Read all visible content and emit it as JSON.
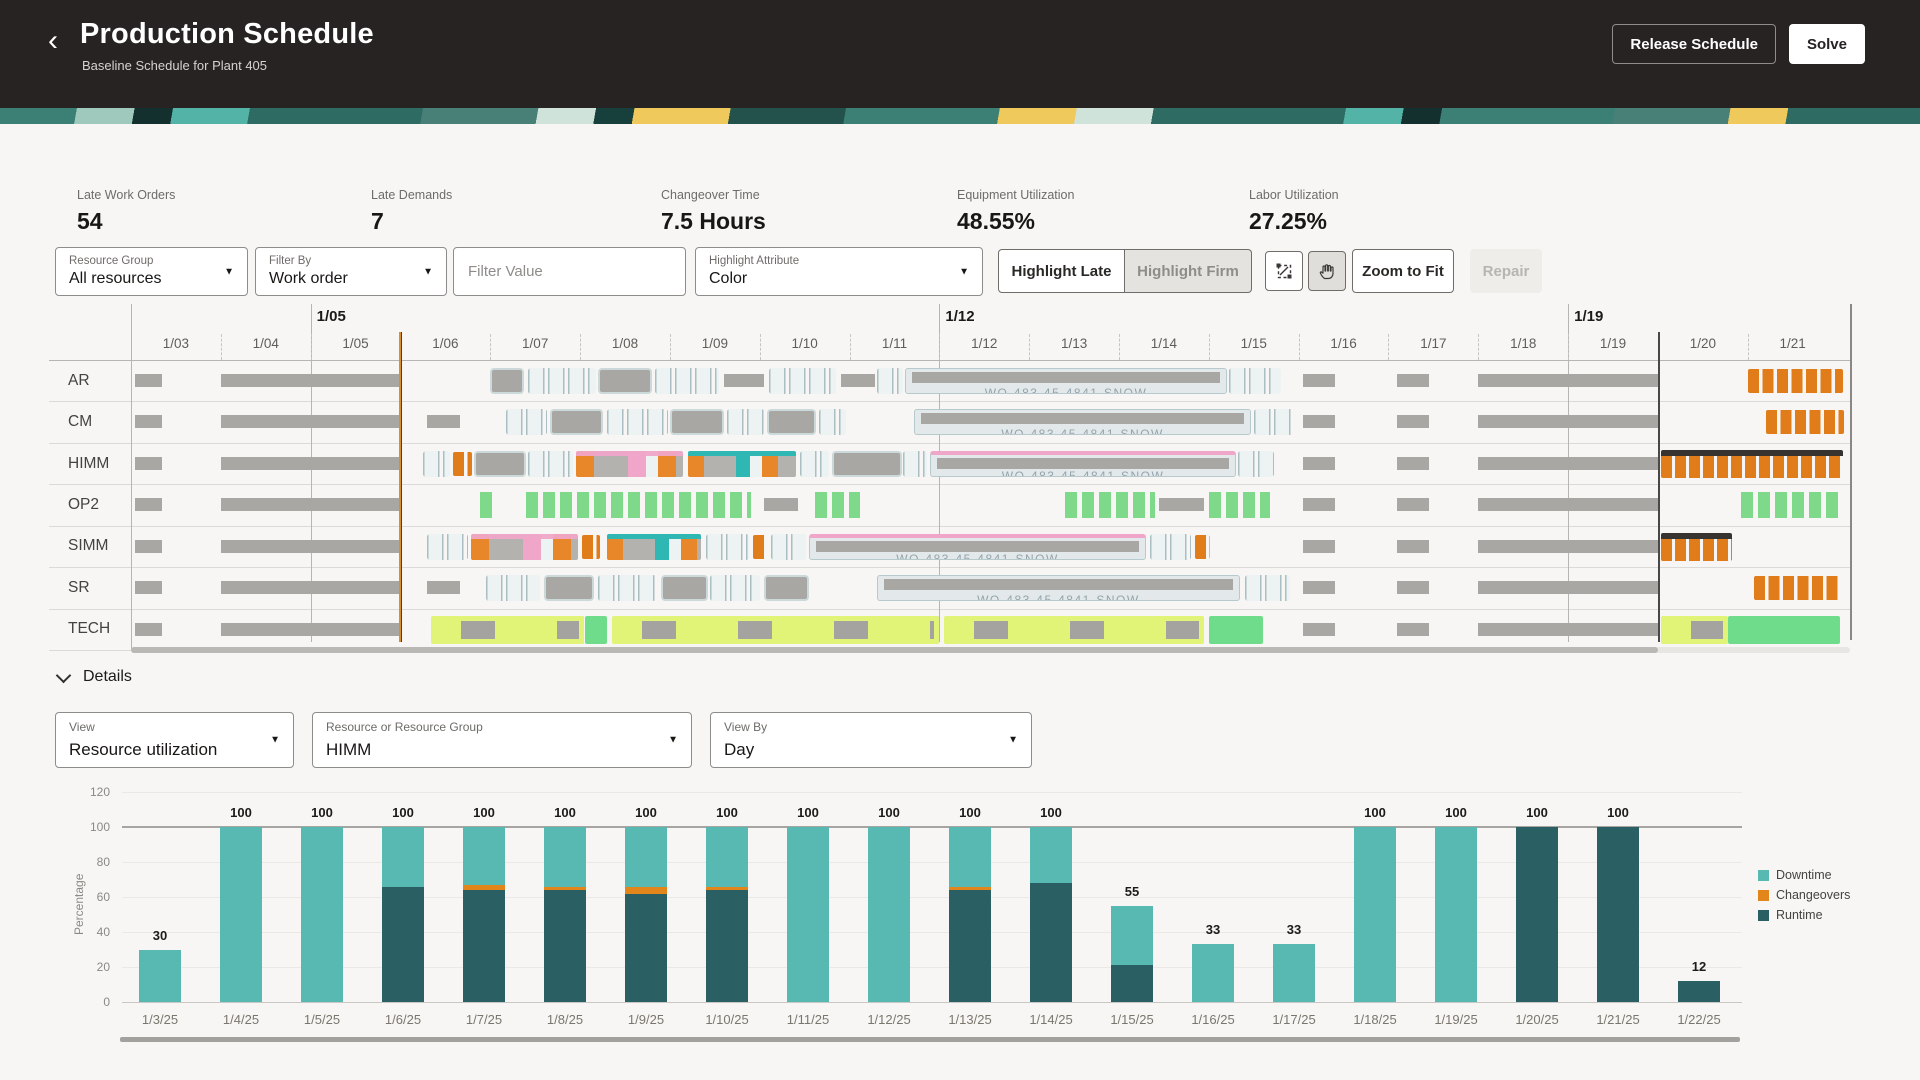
{
  "header": {
    "back_icon": "‹",
    "title": "Production Schedule",
    "subtitle": "Baseline Schedule for Plant 405",
    "release_button": "Release Schedule",
    "solve_button": "Solve"
  },
  "kpis": [
    {
      "label": "Late Work Orders",
      "value": "54"
    },
    {
      "label": "Late Demands",
      "value": "7"
    },
    {
      "label": "Changeover Time",
      "value": "7.5 Hours"
    },
    {
      "label": "Equipment Utilization",
      "value": "48.55%"
    },
    {
      "label": "Labor Utilization",
      "value": "27.25%"
    }
  ],
  "toolbar": {
    "resource_group": {
      "label": "Resource Group",
      "value": "All resources"
    },
    "filter_by": {
      "label": "Filter By",
      "value": "Work order"
    },
    "filter_value": {
      "placeholder": "Filter Value"
    },
    "highlight_attribute": {
      "label": "Highlight Attribute",
      "value": "Color"
    },
    "highlight_late": "Highlight Late",
    "highlight_firm": "Highlight Firm",
    "zoom_to_fit": "Zoom to Fit",
    "repair": "Repair",
    "icons": [
      "marquee-zoom-icon",
      "pan-hand-icon"
    ]
  },
  "gantt": {
    "week_labels": [
      {
        "text": "1/05",
        "day": 2
      },
      {
        "text": "1/12",
        "day": 9
      },
      {
        "text": "1/19",
        "day": 16
      }
    ],
    "day_labels": [
      "1/03",
      "1/04",
      "1/05",
      "1/06",
      "1/07",
      "1/08",
      "1/09",
      "1/10",
      "1/11",
      "1/12",
      "1/13",
      "1/14",
      "1/15",
      "1/16",
      "1/17",
      "1/18",
      "1/19",
      "1/20",
      "1/21"
    ],
    "current_time_day": 3.0,
    "horizon_day": 17.0,
    "illegible_bar_text": "WO-483-45-4841-SNOW",
    "bar_type_names": {
      "g": "downtime-gray",
      "caps": "task-segments",
      "gcap": "firm-task",
      "or": "changeover-orange",
      "orD": "late-orange-dark",
      "gn": "green-tasks",
      "grn": "green-block",
      "lime": "lime-tasks",
      "pko": "pink-orange-mix",
      "tlo": "teal-orange-mix",
      "wo": "work-order-long",
      "pkwo": "work-order-long-pink"
    },
    "rows": [
      {
        "name": "AR",
        "bars": [
          [
            0.05,
            0.3,
            "g"
          ],
          [
            1.0,
            2.0,
            "g"
          ],
          [
            4.0,
            0.38,
            "gcap"
          ],
          [
            4.42,
            0.76,
            "caps"
          ],
          [
            5.2,
            0.6,
            "gcap"
          ],
          [
            5.83,
            0.72,
            "caps"
          ],
          [
            6.6,
            0.45,
            "g"
          ],
          [
            7.1,
            0.75,
            "caps"
          ],
          [
            7.9,
            0.38,
            "g"
          ],
          [
            8.3,
            0.3,
            "caps"
          ],
          [
            8.62,
            3.58,
            "wo"
          ],
          [
            12.22,
            0.58,
            "caps"
          ],
          [
            13.05,
            0.35,
            "g"
          ],
          [
            14.1,
            0.35,
            "g"
          ],
          [
            15.0,
            2.0,
            "g"
          ],
          [
            18.0,
            1.06,
            "or"
          ]
        ]
      },
      {
        "name": "CM",
        "bars": [
          [
            0.05,
            0.3,
            "g"
          ],
          [
            1.0,
            2.0,
            "g"
          ],
          [
            3.3,
            0.36,
            "g"
          ],
          [
            4.18,
            0.45,
            "caps"
          ],
          [
            4.66,
            0.6,
            "gcap"
          ],
          [
            5.3,
            0.68,
            "caps"
          ],
          [
            6.0,
            0.6,
            "gcap"
          ],
          [
            6.63,
            0.42,
            "caps"
          ],
          [
            7.08,
            0.55,
            "gcap"
          ],
          [
            7.66,
            0.3,
            "caps"
          ],
          [
            8.72,
            3.75,
            "wo"
          ],
          [
            12.5,
            0.45,
            "caps"
          ],
          [
            13.05,
            0.35,
            "g"
          ],
          [
            14.1,
            0.35,
            "g"
          ],
          [
            15.0,
            2.0,
            "g"
          ],
          [
            18.2,
            0.87,
            "or"
          ]
        ]
      },
      {
        "name": "HIMM",
        "bars": [
          [
            0.05,
            0.3,
            "g"
          ],
          [
            1.0,
            2.0,
            "g"
          ],
          [
            3.25,
            0.3,
            "caps"
          ],
          [
            3.58,
            0.22,
            "or"
          ],
          [
            3.82,
            0.58,
            "gcap"
          ],
          [
            4.42,
            0.5,
            "caps"
          ],
          [
            4.95,
            1.2,
            "pko"
          ],
          [
            6.2,
            1.2,
            "tlo"
          ],
          [
            7.45,
            0.32,
            "caps"
          ],
          [
            7.8,
            0.78,
            "gcap"
          ],
          [
            8.6,
            0.26,
            "caps"
          ],
          [
            8.9,
            3.4,
            "pkwo"
          ],
          [
            12.32,
            0.4,
            "caps"
          ],
          [
            13.05,
            0.35,
            "g"
          ],
          [
            14.1,
            0.35,
            "g"
          ],
          [
            15.0,
            2.0,
            "g"
          ],
          [
            17.03,
            2.03,
            "orD"
          ]
        ]
      },
      {
        "name": "OP2",
        "bars": [
          [
            0.05,
            0.3,
            "g"
          ],
          [
            1.0,
            2.0,
            "g"
          ],
          [
            3.88,
            0.16,
            "gn"
          ],
          [
            4.4,
            2.5,
            "gn"
          ],
          [
            7.05,
            0.38,
            "g"
          ],
          [
            7.62,
            0.5,
            "gn"
          ],
          [
            10.4,
            1.0,
            "gn"
          ],
          [
            11.45,
            0.5,
            "g"
          ],
          [
            12.0,
            0.68,
            "gn"
          ],
          [
            13.05,
            0.35,
            "g"
          ],
          [
            14.1,
            0.35,
            "g"
          ],
          [
            15.0,
            2.0,
            "g"
          ],
          [
            17.92,
            1.14,
            "gn"
          ]
        ]
      },
      {
        "name": "SIMM",
        "bars": [
          [
            0.05,
            0.3,
            "g"
          ],
          [
            1.0,
            2.0,
            "g"
          ],
          [
            3.3,
            0.45,
            "caps"
          ],
          [
            3.78,
            1.2,
            "pko"
          ],
          [
            5.02,
            0.2,
            "or"
          ],
          [
            5.3,
            1.05,
            "tlo"
          ],
          [
            6.4,
            0.48,
            "caps"
          ],
          [
            6.92,
            0.16,
            "or"
          ],
          [
            7.12,
            0.4,
            "caps"
          ],
          [
            7.55,
            3.75,
            "pkwo"
          ],
          [
            11.35,
            0.45,
            "caps"
          ],
          [
            11.85,
            0.16,
            "or"
          ],
          [
            13.05,
            0.35,
            "g"
          ],
          [
            14.1,
            0.35,
            "g"
          ],
          [
            15.0,
            2.0,
            "g"
          ],
          [
            17.03,
            0.8,
            "orD"
          ]
        ]
      },
      {
        "name": "SR",
        "bars": [
          [
            0.05,
            0.3,
            "g"
          ],
          [
            1.0,
            2.0,
            "g"
          ],
          [
            3.3,
            0.36,
            "g"
          ],
          [
            3.95,
            0.6,
            "caps"
          ],
          [
            4.6,
            0.55,
            "gcap"
          ],
          [
            5.2,
            0.65,
            "caps"
          ],
          [
            5.9,
            0.52,
            "gcap"
          ],
          [
            6.45,
            0.55,
            "caps"
          ],
          [
            7.05,
            0.5,
            "gcap"
          ],
          [
            8.3,
            4.05,
            "wo"
          ],
          [
            12.4,
            0.5,
            "caps"
          ],
          [
            13.05,
            0.35,
            "g"
          ],
          [
            14.1,
            0.35,
            "g"
          ],
          [
            15.0,
            2.0,
            "g"
          ],
          [
            18.07,
            0.95,
            "or"
          ]
        ]
      },
      {
        "name": "TECH",
        "bars": [
          [
            0.05,
            0.3,
            "g"
          ],
          [
            1.0,
            2.0,
            "g"
          ],
          [
            3.34,
            1.7,
            "lime"
          ],
          [
            5.05,
            0.25,
            "grn"
          ],
          [
            5.35,
            3.65,
            "lime"
          ],
          [
            9.05,
            2.9,
            "lime"
          ],
          [
            12.0,
            0.6,
            "grn"
          ],
          [
            13.05,
            0.35,
            "g"
          ],
          [
            14.1,
            0.35,
            "g"
          ],
          [
            15.0,
            2.0,
            "g"
          ],
          [
            17.03,
            0.75,
            "lime"
          ],
          [
            17.78,
            1.25,
            "grn"
          ]
        ]
      }
    ]
  },
  "details": {
    "title": "Details",
    "view": {
      "label": "View",
      "value": "Resource utilization"
    },
    "resource": {
      "label": "Resource or Resource Group",
      "value": "HIMM"
    },
    "view_by": {
      "label": "View By",
      "value": "Day"
    }
  },
  "chart_data": {
    "type": "bar",
    "stacked": true,
    "title": "",
    "xlabel": "",
    "ylabel": "Percentage",
    "categories": [
      "1/3/25",
      "1/4/25",
      "1/5/25",
      "1/6/25",
      "1/7/25",
      "1/8/25",
      "1/9/25",
      "1/10/25",
      "1/11/25",
      "1/12/25",
      "1/13/25",
      "1/14/25",
      "1/15/25",
      "1/16/25",
      "1/17/25",
      "1/18/25",
      "1/19/25",
      "1/20/25",
      "1/21/25",
      "1/22/25"
    ],
    "series": [
      {
        "name": "Downtime",
        "color": "#57b9b2",
        "values": [
          30,
          100,
          100,
          34,
          33,
          34,
          34,
          34,
          100,
          100,
          34,
          32,
          34,
          33,
          33,
          100,
          100,
          0,
          0,
          0
        ]
      },
      {
        "name": "Changeovers",
        "color": "#e2861c",
        "values": [
          0,
          0,
          0,
          0,
          3,
          2,
          4,
          2,
          0,
          0,
          2,
          0,
          0,
          0,
          0,
          0,
          0,
          0,
          0,
          0
        ]
      },
      {
        "name": "Runtime",
        "color": "#2a5f63",
        "values": [
          0,
          0,
          0,
          66,
          64,
          64,
          62,
          64,
          0,
          0,
          64,
          68,
          21,
          0,
          0,
          0,
          0,
          100,
          100,
          12
        ]
      }
    ],
    "totals": [
      30,
      100,
      100,
      100,
      100,
      100,
      100,
      100,
      100,
      100,
      100,
      100,
      55,
      33,
      33,
      100,
      100,
      100,
      100,
      12
    ],
    "yticks": [
      0,
      20,
      40,
      60,
      80,
      100,
      120
    ],
    "ylim": [
      0,
      120
    ],
    "reference_line": 100,
    "grid": true,
    "legend_position": "right",
    "legend": [
      "Downtime",
      "Changeovers",
      "Runtime"
    ]
  },
  "colors": {
    "header_bg": "#262322",
    "accent_orange": "#e07c1a",
    "downtime_teal": "#57b9b2",
    "runtime_dark": "#2a5f63",
    "gray_bar": "#a9a7a4",
    "pink": "#f0a6c8",
    "teal": "#2fb8b3",
    "green": "#7fd98b",
    "lime": "#e1f478"
  }
}
